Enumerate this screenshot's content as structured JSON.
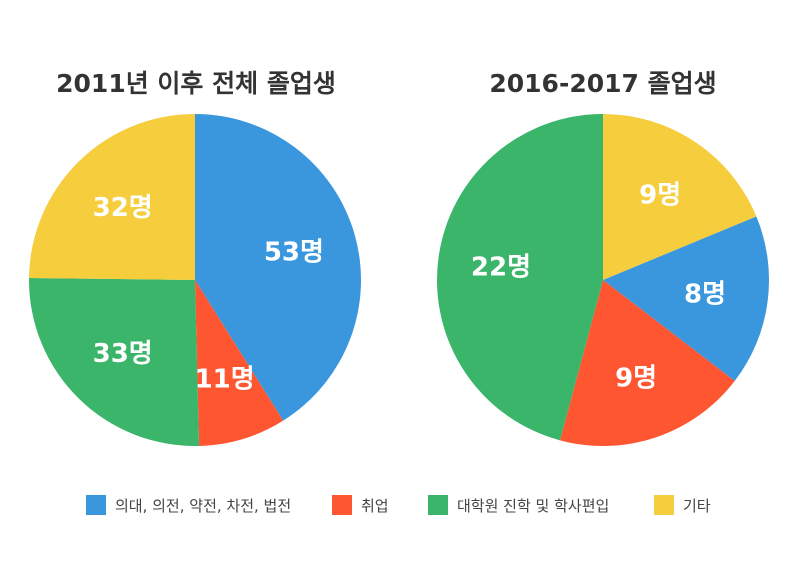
{
  "colors": {
    "blue": "#3a96dd",
    "red": "#fd5631",
    "green": "#3ab56a",
    "yellow": "#f5cd3d"
  },
  "legend": [
    {
      "label": "의대, 의전, 약전, 차전, 법전",
      "color": "#3a96dd"
    },
    {
      "label": "취업",
      "color": "#fd5631"
    },
    {
      "label": "대학원 진학 및 학사편입",
      "color": "#3ab56a"
    },
    {
      "label": "기타",
      "color": "#f5cd3d"
    }
  ],
  "chart_data": [
    {
      "type": "pie",
      "title": "2011년 이후 전체 졸업생",
      "categories": [
        "의대, 의전, 약전, 차전, 법전",
        "취업",
        "대학원 진학 및 학사편입",
        "기타"
      ],
      "values": [
        53,
        11,
        33,
        32
      ],
      "labels": [
        "53명",
        "11명",
        "33명",
        "32명"
      ],
      "colors": [
        "#3a96dd",
        "#fd5631",
        "#3ab56a",
        "#f5cd3d"
      ],
      "start": "12 o'clock, clockwise"
    },
    {
      "type": "pie",
      "title": "2016-2017 졸업생",
      "categories": [
        "기타",
        "의대, 의전, 약전, 차전, 법전",
        "취업",
        "대학원 진학 및 학사편입"
      ],
      "values": [
        9,
        8,
        9,
        22
      ],
      "labels": [
        "9명",
        "8명",
        "9명",
        "22명"
      ],
      "colors": [
        "#f5cd3d",
        "#3a96dd",
        "#fd5631",
        "#3ab56a"
      ],
      "start": "12 o'clock, clockwise"
    }
  ]
}
